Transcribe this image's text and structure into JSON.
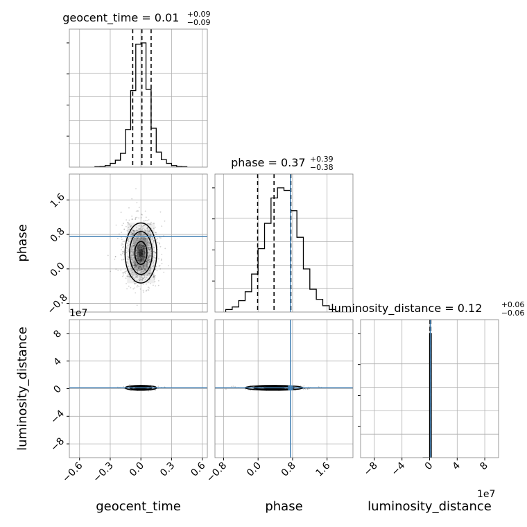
{
  "chart_data": {
    "type": "corner",
    "parameters": [
      "geocent_time",
      "phase",
      "luminosity_distance"
    ],
    "axis_labels": [
      "geocent_time",
      "phase",
      "luminosity_distance"
    ],
    "offset_text": "1e7",
    "titles": [
      {
        "param": "geocent_time",
        "text": "geocent_time = 0.01",
        "sup": "+0.09",
        "sub": "−0.09"
      },
      {
        "param": "phase",
        "text": "phase = 0.37",
        "sup": "+0.39",
        "sub": "−0.38"
      },
      {
        "param": "luminosity_distance",
        "text": "luminosity_distance = 0.12",
        "sup": "+0.06",
        "sub": "−0.06"
      }
    ],
    "ranges": {
      "geocent_time": [
        -0.7,
        0.65
      ],
      "phase": [
        -1.0,
        2.2
      ],
      "luminosity_distance": [
        -10,
        10
      ]
    },
    "ticks": {
      "geocent_time": [
        "−0.6",
        "−0.3",
        "0.0",
        "0.3",
        "0.6"
      ],
      "phase": [
        "−0.8",
        "0.0",
        "0.8",
        "1.6"
      ],
      "luminosity_distance": [
        "−8",
        "−4",
        "0",
        "4",
        "8"
      ]
    },
    "tick_values": {
      "geocent_time": [
        -0.6,
        -0.3,
        0.0,
        0.3,
        0.6
      ],
      "phase": [
        -0.8,
        0.0,
        0.8,
        1.6
      ],
      "luminosity_distance": [
        -8,
        -4,
        0,
        4,
        8
      ]
    },
    "injection": {
      "phase": 0.75,
      "luminosity_distance": 0.12
    },
    "quantiles": {
      "geocent_time": [
        -0.08,
        0.01,
        0.1
      ],
      "phase": [
        -0.01,
        0.37,
        0.76
      ],
      "luminosity_distance": [
        0.06,
        0.12,
        0.18
      ]
    },
    "histograms": {
      "geocent_time": {
        "bin_edges": [
          -0.45,
          -0.4,
          -0.35,
          -0.3,
          -0.25,
          -0.2,
          -0.15,
          -0.1,
          -0.05,
          0.0,
          0.05,
          0.1,
          0.15,
          0.2,
          0.25,
          0.3,
          0.35,
          0.4,
          0.45
        ],
        "counts": [
          0.003,
          0.005,
          0.012,
          0.03,
          0.055,
          0.11,
          0.3,
          0.61,
          0.98,
          0.99,
          0.62,
          0.31,
          0.12,
          0.06,
          0.03,
          0.012,
          0.005,
          0.003
        ]
      },
      "phase": {
        "bin_edges": [
          -0.75,
          -0.6,
          -0.45,
          -0.3,
          -0.15,
          0.0,
          0.15,
          0.3,
          0.45,
          0.6,
          0.75,
          0.9,
          1.05,
          1.2,
          1.35,
          1.5,
          1.65,
          1.8
        ],
        "counts": [
          0.02,
          0.04,
          0.09,
          0.16,
          0.3,
          0.5,
          0.7,
          0.9,
          0.98,
          0.96,
          0.8,
          0.59,
          0.34,
          0.18,
          0.1,
          0.05,
          0.02
        ]
      },
      "luminosity_distance": {
        "bin_edges": [
          -1.0,
          0.0,
          0.25
        ],
        "counts": [
          0.0,
          1.0
        ]
      }
    },
    "contour_pairs": [
      {
        "x": "geocent_time",
        "y": "phase",
        "center": [
          0.0,
          0.37
        ],
        "sigma": [
          0.09,
          0.39
        ]
      },
      {
        "x": "geocent_time",
        "y": "luminosity_distance",
        "center": [
          0.0,
          0.12
        ],
        "sigma": [
          0.09,
          0.06
        ]
      },
      {
        "x": "phase",
        "y": "luminosity_distance",
        "center": [
          0.37,
          0.12
        ],
        "sigma": [
          0.39,
          0.06
        ]
      }
    ],
    "grid": true,
    "colors": {
      "hist": "#000000",
      "injection": "#4682b4",
      "density": "#000000",
      "grid": "#b0b0b0"
    }
  }
}
